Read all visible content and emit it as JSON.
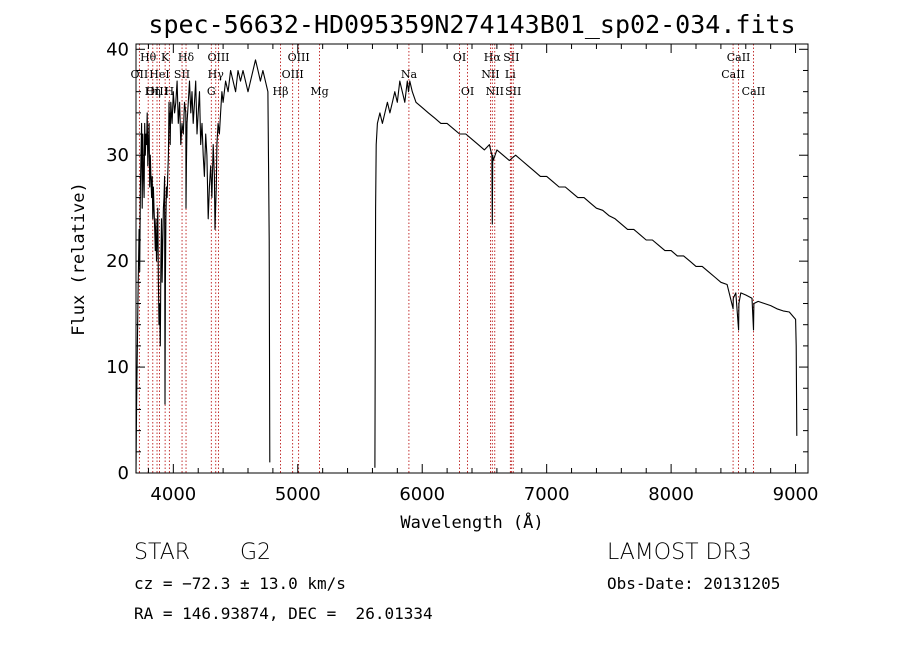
{
  "info": {
    "object_class": "STAR",
    "subclass": "G2",
    "survey": "LAMOST DR3",
    "cz": "cz = −72.3 ± 13.0 km/s",
    "obs_date": "Obs-Date: 20131205",
    "coords": "RA = 146.93874, DEC =  26.01334"
  },
  "colors": {
    "spectrum": "#000000",
    "line_marker": "#b40000",
    "frame": "#000000"
  },
  "chart_data": {
    "type": "line",
    "title": "spec-56632-HD095359N274143B01_sp02-034.fits",
    "xlabel": "Wavelength (Å)",
    "ylabel": "Flux (relative)",
    "xlim": [
      3700,
      9100
    ],
    "ylim": [
      0,
      40.5
    ],
    "xticks": [
      4000,
      5000,
      6000,
      7000,
      8000,
      9000
    ],
    "yticks": [
      0,
      10,
      20,
      30,
      40
    ],
    "spectrum_segments": [
      {
        "x": [
          3700,
          3705,
          3712,
          3718,
          3725,
          3730,
          3735,
          3740,
          3745,
          3750,
          3755,
          3760,
          3765,
          3770,
          3775,
          3780,
          3785,
          3790,
          3795,
          3800,
          3805,
          3810,
          3815,
          3820,
          3825,
          3830,
          3835,
          3840,
          3845,
          3850,
          3855,
          3860,
          3865,
          3870,
          3875,
          3880,
          3885,
          3890,
          3895,
          3900,
          3905,
          3910,
          3915,
          3920,
          3925,
          3930,
          3933,
          3936,
          3940,
          3945,
          3950,
          3955,
          3960,
          3965,
          3968,
          3971,
          3975,
          3980,
          3990,
          4000,
          4010,
          4020,
          4030,
          4040,
          4050,
          4060,
          4070,
          4080,
          4090,
          4100,
          4102,
          4105,
          4110,
          4120,
          4130,
          4140,
          4150,
          4160,
          4170,
          4180,
          4190,
          4200,
          4210,
          4220,
          4230,
          4240,
          4250,
          4260,
          4270,
          4280,
          4290,
          4300,
          4310,
          4320,
          4330,
          4335,
          4340,
          4345,
          4350,
          4360,
          4370,
          4380,
          4390,
          4400,
          4420,
          4440,
          4460,
          4480,
          4500,
          4520,
          4540,
          4560,
          4580,
          4600,
          4620,
          4640,
          4660,
          4680,
          4700,
          4720,
          4740,
          4760,
          4770,
          4775
        ],
        "y": [
          0,
          6.5,
          13,
          18,
          23,
          19,
          27,
          30,
          33,
          25,
          32,
          28,
          26,
          33,
          30,
          32,
          31,
          34,
          29,
          31,
          33,
          27,
          30,
          28,
          26,
          28,
          24,
          27,
          25,
          23,
          21,
          24,
          20,
          22,
          25,
          18,
          14,
          16,
          12,
          20,
          24,
          18,
          22,
          25,
          26,
          28,
          6.5,
          18,
          24,
          27,
          26,
          28,
          30,
          35,
          33,
          34,
          31,
          35,
          33,
          36,
          34,
          35,
          37,
          33,
          35,
          31,
          33,
          32,
          35,
          34,
          25,
          29,
          33,
          35,
          37,
          34,
          36,
          33,
          35,
          37,
          32,
          34,
          36,
          31,
          33,
          30,
          28,
          32,
          30,
          24,
          27,
          29,
          26,
          31,
          28,
          23,
          25,
          27,
          31,
          33,
          32,
          34,
          36,
          35,
          37,
          36,
          38,
          37,
          36,
          38,
          37,
          38,
          37,
          36,
          37,
          38,
          39,
          38,
          37,
          38,
          37,
          36,
          22,
          1.0
        ]
      },
      {
        "x": [
          5620,
          5625,
          5630,
          5640,
          5660,
          5680,
          5700,
          5720,
          5740,
          5760,
          5780,
          5800,
          5820,
          5840,
          5860,
          5880,
          5890,
          5900,
          5920,
          5950,
          6000,
          6050,
          6100,
          6150,
          6200,
          6250,
          6300,
          6350,
          6400,
          6450,
          6500,
          6540,
          6560,
          6563,
          6566,
          6570,
          6600,
          6650,
          6700,
          6750,
          6800,
          6850,
          6900,
          6950,
          7000,
          7050,
          7100,
          7150,
          7200,
          7250,
          7300,
          7350,
          7400,
          7450,
          7500,
          7550,
          7600,
          7650,
          7700,
          7750,
          7800,
          7850,
          7900,
          7950,
          8000,
          8050,
          8100,
          8150,
          8200,
          8250,
          8300,
          8350,
          8400,
          8450,
          8498,
          8500,
          8520,
          8542,
          8545,
          8560,
          8600,
          8650,
          8662,
          8665,
          8700,
          8750,
          8800,
          8850,
          8900,
          8950,
          9000,
          9005,
          9010
        ],
        "y": [
          0.5,
          25,
          31,
          33,
          34,
          33,
          34,
          35,
          34,
          35,
          36,
          35,
          37,
          36,
          35,
          37,
          36,
          37,
          36,
          35,
          34.5,
          34,
          33.5,
          33,
          33,
          32.5,
          32,
          32,
          31.5,
          31,
          30.5,
          31,
          30,
          23.5,
          30,
          29.5,
          30.5,
          30,
          29.5,
          30,
          29.5,
          29,
          28.5,
          28,
          28,
          27.5,
          27,
          27,
          26.5,
          26,
          26,
          25.5,
          25,
          24.8,
          24.3,
          24,
          23.5,
          23,
          23,
          22.5,
          22,
          22,
          21.5,
          21,
          21,
          20.5,
          20.5,
          20,
          19.5,
          19.5,
          19,
          18.5,
          18,
          17.8,
          15.5,
          16.5,
          17,
          13.5,
          16,
          17,
          16.8,
          16.5,
          13.5,
          16,
          16.2,
          16,
          15.8,
          15.5,
          15.3,
          15.2,
          14.5,
          12,
          3.5
        ]
      }
    ],
    "line_markers": [
      {
        "label": "Hθ",
        "wavelength": 3798,
        "row": 1
      },
      {
        "label": "OII",
        "wavelength": 3727,
        "row": 2
      },
      {
        "label": "OIII",
        "wavelength": 3869,
        "row": 3
      },
      {
        "label": "K",
        "wavelength": 3934,
        "row": 1
      },
      {
        "label": "HeI",
        "wavelength": 3889,
        "row": 2
      },
      {
        "label": "Hη",
        "wavelength": 3835,
        "row": 3
      },
      {
        "label": "H",
        "wavelength": 3968,
        "row": 3
      },
      {
        "label": "SII",
        "wavelength": 4070,
        "row": 2
      },
      {
        "label": "Hδ",
        "wavelength": 4102,
        "row": 1
      },
      {
        "label": "OIII",
        "wavelength": 4363,
        "row": 1
      },
      {
        "label": "Hγ",
        "wavelength": 4341,
        "row": 2
      },
      {
        "label": "G",
        "wavelength": 4305,
        "row": 3
      },
      {
        "label": "OIII",
        "wavelength": 5007,
        "row": 1
      },
      {
        "label": "OIII",
        "wavelength": 4959,
        "row": 2
      },
      {
        "label": "Hβ",
        "wavelength": 4861,
        "row": 3
      },
      {
        "label": "Mg",
        "wavelength": 5175,
        "row": 3
      },
      {
        "label": "Na",
        "wavelength": 5893,
        "row": 2
      },
      {
        "label": "OI",
        "wavelength": 6300,
        "row": 1
      },
      {
        "label": "OI",
        "wavelength": 6364,
        "row": 3
      },
      {
        "label": "Hα",
        "wavelength": 6563,
        "row": 1
      },
      {
        "label": "NII",
        "wavelength": 6548,
        "row": 2
      },
      {
        "label": "NII",
        "wavelength": 6583,
        "row": 3
      },
      {
        "label": "SII",
        "wavelength": 6716,
        "row": 1
      },
      {
        "label": "Li",
        "wavelength": 6708,
        "row": 2
      },
      {
        "label": "SII",
        "wavelength": 6731,
        "row": 3
      },
      {
        "label": "CaII",
        "wavelength": 8542,
        "row": 1
      },
      {
        "label": "CaII",
        "wavelength": 8498,
        "row": 2
      },
      {
        "label": "CaII",
        "wavelength": 8662,
        "row": 3
      }
    ]
  }
}
